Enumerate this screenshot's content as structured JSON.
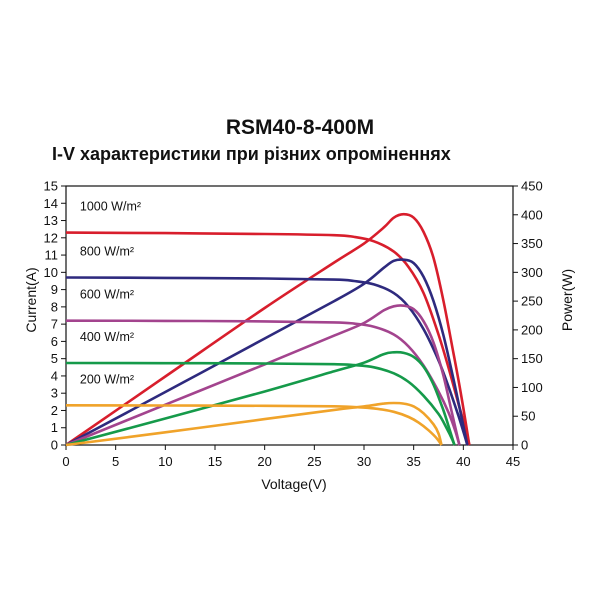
{
  "chart_data": {
    "type": "line",
    "title": "RSM40-8-400M",
    "subtitle": "I-V характеристики при різних опроміненнях",
    "xlabel": "Voltage(V)",
    "ylabel": "Current(A)",
    "y2label": "Power(W)",
    "xlim": [
      0,
      45
    ],
    "ylim": [
      0,
      15
    ],
    "y2lim": [
      0,
      450
    ],
    "xticks": [
      0,
      5,
      10,
      15,
      20,
      25,
      30,
      35,
      40,
      45
    ],
    "yticks": [
      0,
      1,
      2,
      3,
      4,
      5,
      6,
      7,
      8,
      9,
      10,
      11,
      12,
      13,
      14,
      15
    ],
    "y2ticks": [
      0,
      50,
      100,
      150,
      200,
      250,
      300,
      350,
      400,
      450
    ],
    "grid": false,
    "legend": "inline labels",
    "series": [
      {
        "name": "1000 W/m²",
        "color": "#d81e2c",
        "iv": [
          [
            0,
            12.3
          ],
          [
            10,
            12.27
          ],
          [
            20,
            12.22
          ],
          [
            27,
            12.15
          ],
          [
            29,
            12.05
          ],
          [
            31,
            11.8
          ],
          [
            33,
            11.2
          ],
          [
            34.5,
            10.3
          ],
          [
            36,
            8.8
          ],
          [
            37.5,
            6.4
          ],
          [
            38.5,
            4.5
          ],
          [
            39.5,
            2.4
          ],
          [
            40.2,
            1.0
          ],
          [
            40.6,
            0
          ]
        ],
        "pv": [
          [
            0,
            0
          ],
          [
            10,
            119
          ],
          [
            20,
            238
          ],
          [
            27,
            317
          ],
          [
            30,
            350
          ],
          [
            32,
            378
          ],
          [
            33,
            395
          ],
          [
            34,
            401
          ],
          [
            35,
            395
          ],
          [
            36,
            370
          ],
          [
            37,
            325
          ],
          [
            38,
            250
          ],
          [
            39,
            160
          ],
          [
            39.8,
            85
          ],
          [
            40.6,
            0
          ]
        ]
      },
      {
        "name": "800 W/m²",
        "color": "#2e2a7e",
        "iv": [
          [
            0,
            9.7
          ],
          [
            10,
            9.68
          ],
          [
            20,
            9.64
          ],
          [
            27,
            9.58
          ],
          [
            29,
            9.5
          ],
          [
            31,
            9.3
          ],
          [
            33,
            8.8
          ],
          [
            34.5,
            8.0
          ],
          [
            36,
            6.7
          ],
          [
            37.5,
            4.9
          ],
          [
            38.5,
            3.4
          ],
          [
            39.5,
            1.7
          ],
          [
            40.1,
            0.6
          ],
          [
            40.4,
            0
          ]
        ],
        "pv": [
          [
            0,
            0
          ],
          [
            10,
            92
          ],
          [
            20,
            185
          ],
          [
            27,
            250
          ],
          [
            30,
            280
          ],
          [
            32,
            308
          ],
          [
            33,
            320
          ],
          [
            34,
            322
          ],
          [
            35,
            316
          ],
          [
            36,
            292
          ],
          [
            37,
            250
          ],
          [
            38,
            190
          ],
          [
            39,
            115
          ],
          [
            39.8,
            50
          ],
          [
            40.4,
            0
          ]
        ]
      },
      {
        "name": "600 W/m²",
        "color": "#a3448e",
        "iv": [
          [
            0,
            7.2
          ],
          [
            10,
            7.19
          ],
          [
            20,
            7.16
          ],
          [
            27,
            7.1
          ],
          [
            29,
            7.03
          ],
          [
            31,
            6.85
          ],
          [
            33,
            6.4
          ],
          [
            34.5,
            5.7
          ],
          [
            36,
            4.6
          ],
          [
            37.5,
            3.1
          ],
          [
            38.5,
            1.9
          ],
          [
            39.2,
            0.8
          ],
          [
            39.6,
            0
          ]
        ],
        "pv": [
          [
            0,
            0
          ],
          [
            10,
            70
          ],
          [
            20,
            140
          ],
          [
            27,
            190
          ],
          [
            30,
            212
          ],
          [
            32,
            234
          ],
          [
            33,
            241
          ],
          [
            34,
            242
          ],
          [
            35,
            236
          ],
          [
            36,
            215
          ],
          [
            37,
            178
          ],
          [
            38,
            120
          ],
          [
            38.8,
            60
          ],
          [
            39.6,
            0
          ]
        ]
      },
      {
        "name": "400 W/m²",
        "color": "#159a4a",
        "iv": [
          [
            0,
            4.75
          ],
          [
            10,
            4.74
          ],
          [
            20,
            4.72
          ],
          [
            27,
            4.68
          ],
          [
            29,
            4.63
          ],
          [
            31,
            4.5
          ],
          [
            33,
            4.15
          ],
          [
            34.5,
            3.65
          ],
          [
            36,
            2.85
          ],
          [
            37.5,
            1.8
          ],
          [
            38.3,
            1.0
          ],
          [
            38.9,
            0.3
          ],
          [
            39.1,
            0
          ]
        ],
        "pv": [
          [
            0,
            0
          ],
          [
            10,
            46
          ],
          [
            20,
            93
          ],
          [
            27,
            128
          ],
          [
            30,
            143
          ],
          [
            32,
            158
          ],
          [
            33,
            161
          ],
          [
            34,
            160
          ],
          [
            35,
            153
          ],
          [
            36,
            136
          ],
          [
            37,
            105
          ],
          [
            38,
            60
          ],
          [
            38.6,
            28
          ],
          [
            39.1,
            0
          ]
        ]
      },
      {
        "name": "200 W/m²",
        "color": "#f0a32a",
        "iv": [
          [
            0,
            2.3
          ],
          [
            10,
            2.29
          ],
          [
            20,
            2.27
          ],
          [
            27,
            2.24
          ],
          [
            29,
            2.2
          ],
          [
            31,
            2.12
          ],
          [
            33,
            1.92
          ],
          [
            34.5,
            1.62
          ],
          [
            35.5,
            1.3
          ],
          [
            36.5,
            0.85
          ],
          [
            37.3,
            0.4
          ],
          [
            37.8,
            0
          ]
        ],
        "pv": [
          [
            0,
            0
          ],
          [
            10,
            22
          ],
          [
            20,
            45
          ],
          [
            27,
            61
          ],
          [
            30,
            67
          ],
          [
            32,
            72
          ],
          [
            33,
            73
          ],
          [
            34,
            72
          ],
          [
            35,
            67
          ],
          [
            36,
            55
          ],
          [
            37,
            36
          ],
          [
            37.5,
            20
          ],
          [
            37.8,
            0
          ]
        ]
      }
    ]
  }
}
